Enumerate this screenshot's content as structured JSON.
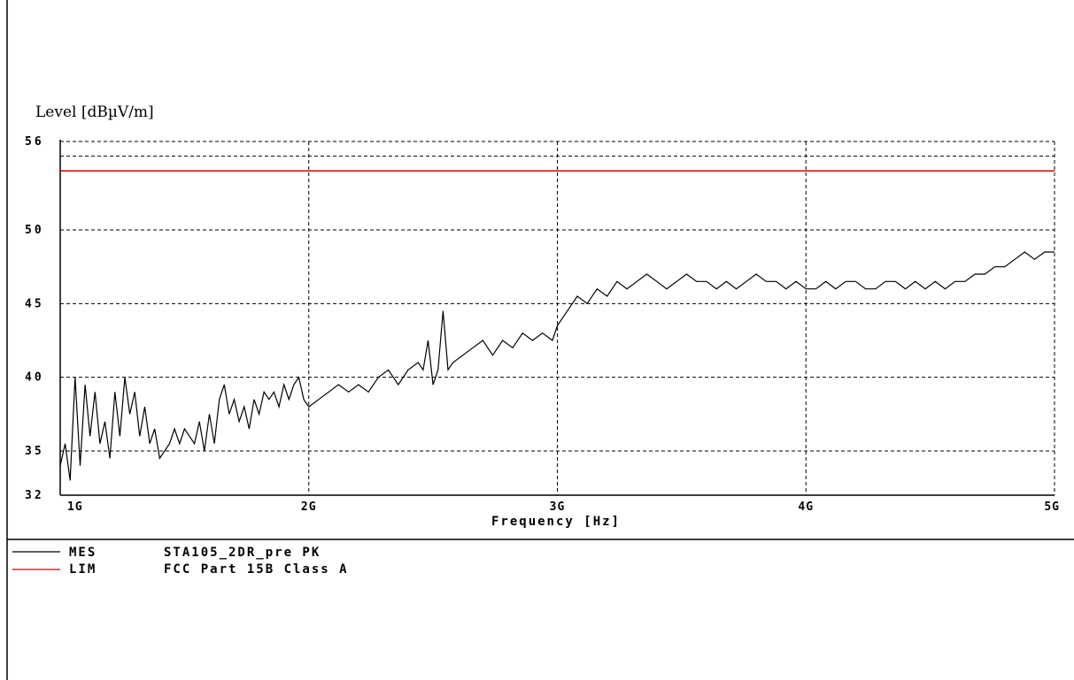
{
  "chart_data": {
    "type": "line",
    "ylabel": "Level [dBµV/m]",
    "xlabel": "Frequency [Hz]",
    "xlim": [
      1,
      5
    ],
    "ylim": [
      32,
      56
    ],
    "y_ticks": [
      {
        "value": 56,
        "label": "56"
      },
      {
        "value": 50,
        "label": "50"
      },
      {
        "value": 45,
        "label": "45"
      },
      {
        "value": 40,
        "label": "40"
      },
      {
        "value": 35,
        "label": "35"
      },
      {
        "value": 32,
        "label": "32"
      }
    ],
    "x_ticks": [
      {
        "value": 1,
        "label": "1G"
      },
      {
        "value": 2,
        "label": "2G"
      },
      {
        "value": 3,
        "label": "3G"
      },
      {
        "value": 4,
        "label": "4G"
      },
      {
        "value": 5,
        "label": "5G"
      }
    ],
    "grid": true,
    "series": [
      {
        "name": "STA105_2DR_pre PK",
        "legend_tag": "MES",
        "color": "#000000",
        "x": [
          1.0,
          1.02,
          1.04,
          1.06,
          1.08,
          1.1,
          1.12,
          1.14,
          1.16,
          1.18,
          1.2,
          1.22,
          1.24,
          1.26,
          1.28,
          1.3,
          1.32,
          1.34,
          1.36,
          1.38,
          1.4,
          1.42,
          1.44,
          1.46,
          1.48,
          1.5,
          1.52,
          1.54,
          1.56,
          1.58,
          1.6,
          1.62,
          1.64,
          1.66,
          1.68,
          1.7,
          1.72,
          1.74,
          1.76,
          1.78,
          1.8,
          1.82,
          1.84,
          1.86,
          1.88,
          1.9,
          1.92,
          1.94,
          1.96,
          1.98,
          2.0,
          2.04,
          2.08,
          2.12,
          2.16,
          2.2,
          2.24,
          2.28,
          2.32,
          2.36,
          2.4,
          2.44,
          2.46,
          2.48,
          2.5,
          2.52,
          2.54,
          2.56,
          2.58,
          2.62,
          2.66,
          2.7,
          2.74,
          2.78,
          2.82,
          2.86,
          2.9,
          2.94,
          2.98,
          3.0,
          3.04,
          3.08,
          3.12,
          3.16,
          3.2,
          3.24,
          3.28,
          3.32,
          3.36,
          3.4,
          3.44,
          3.48,
          3.52,
          3.56,
          3.6,
          3.64,
          3.68,
          3.72,
          3.76,
          3.8,
          3.84,
          3.88,
          3.92,
          3.96,
          4.0,
          4.04,
          4.08,
          4.12,
          4.16,
          4.2,
          4.24,
          4.28,
          4.32,
          4.36,
          4.4,
          4.44,
          4.48,
          4.52,
          4.56,
          4.6,
          4.64,
          4.68,
          4.72,
          4.76,
          4.8,
          4.84,
          4.88,
          4.92,
          4.96,
          5.0
        ],
        "y": [
          34.0,
          35.5,
          33.0,
          40.0,
          34.0,
          39.5,
          36.0,
          39.0,
          35.5,
          37.0,
          34.5,
          39.0,
          36.0,
          40.0,
          37.5,
          39.0,
          36.0,
          38.0,
          35.5,
          36.5,
          34.5,
          35.0,
          35.5,
          36.5,
          35.5,
          36.5,
          36.0,
          35.5,
          37.0,
          35.0,
          37.5,
          35.5,
          38.5,
          39.5,
          37.5,
          38.5,
          37.0,
          38.0,
          36.5,
          38.5,
          37.5,
          39.0,
          38.5,
          39.0,
          38.0,
          39.5,
          38.5,
          39.5,
          40.0,
          38.5,
          38.0,
          38.5,
          39.0,
          39.5,
          39.0,
          39.5,
          39.0,
          40.0,
          40.5,
          39.5,
          40.5,
          41.0,
          40.5,
          42.5,
          39.5,
          40.5,
          44.5,
          40.5,
          41.0,
          41.5,
          42.0,
          42.5,
          41.5,
          42.5,
          42.0,
          43.0,
          42.5,
          43.0,
          42.5,
          43.5,
          44.5,
          45.5,
          45.0,
          46.0,
          45.5,
          46.5,
          46.0,
          46.5,
          47.0,
          46.5,
          46.0,
          46.5,
          47.0,
          46.5,
          46.5,
          46.0,
          46.5,
          46.0,
          46.5,
          47.0,
          46.5,
          46.5,
          46.0,
          46.5,
          46.0,
          46.0,
          46.5,
          46.0,
          46.5,
          46.5,
          46.0,
          46.0,
          46.5,
          46.5,
          46.0,
          46.5,
          46.0,
          46.5,
          46.0,
          46.5,
          46.5,
          47.0,
          47.0,
          47.5,
          47.5,
          48.0,
          48.5,
          48.0,
          48.5,
          48.5
        ]
      },
      {
        "name": "FCC Part 15B Class A",
        "legend_tag": "LIM",
        "color": "#d00000",
        "x": [
          1,
          5
        ],
        "y": [
          54.0,
          54.0
        ]
      }
    ]
  }
}
